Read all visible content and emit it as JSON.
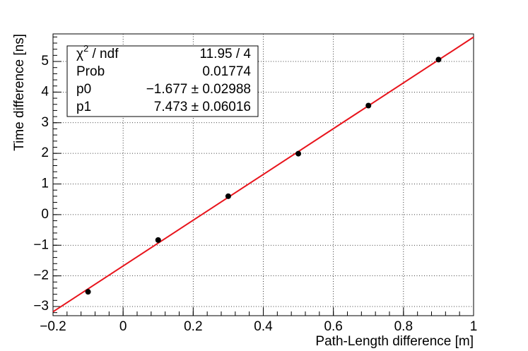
{
  "chart_data": {
    "type": "scatter",
    "x_label": "Path-Length difference [m]",
    "y_label": "Time difference [ns]",
    "x": [
      -0.1,
      0.1,
      0.3,
      0.5,
      0.7,
      0.9
    ],
    "series": [
      {
        "color": "#000000",
        "values": [
          -2.52,
          -0.83,
          0.6,
          1.99,
          3.56,
          5.06
        ]
      }
    ],
    "fit": {
      "p0": -1.677,
      "p1": 7.473,
      "color": "#e8141c"
    },
    "xlim": [
      -0.2,
      1.0
    ],
    "ylim": [
      -3.3,
      5.9
    ],
    "xticks": [
      {
        "value": -0.2,
        "label": "−0.2"
      },
      0,
      0.2,
      0.4,
      0.6,
      0.8,
      1
    ],
    "yticks": [
      {
        "value": -3,
        "label": "−3"
      },
      {
        "value": -2,
        "label": "−2"
      },
      {
        "value": -1,
        "label": "−1"
      },
      0,
      1,
      2,
      3,
      4,
      5
    ],
    "grid": true,
    "stats": [
      {
        "label": [
          "χ",
          "2",
          " / ndf"
        ],
        "value": "11.95 / 4"
      },
      {
        "label": [
          "Prob"
        ],
        "value": "0.01774"
      },
      {
        "label": [
          "p0"
        ],
        "value": "−1.677 ± 0.02988"
      },
      {
        "label": [
          "p1"
        ],
        "value": "7.473 ± 0.06016"
      }
    ]
  }
}
